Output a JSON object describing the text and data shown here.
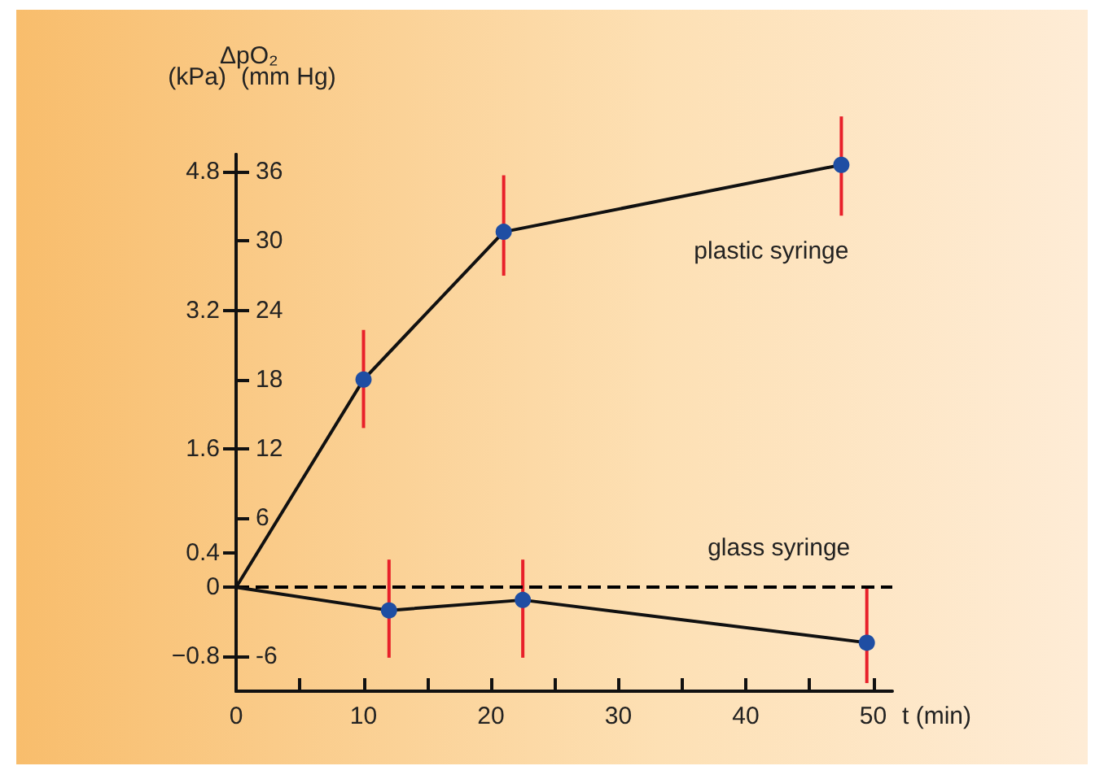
{
  "chart_data": {
    "type": "line",
    "ylabel": "(mm Hg)",
    "y2label": "(kPa)",
    "xlabel": "t (min)",
    "annotations": [
      "ΔpO₂"
    ],
    "series": [
      {
        "name": "plastic syringe",
        "color": "#1f4ea3",
        "x": [
          0,
          10,
          21,
          47.5
        ],
        "values": [
          0,
          18,
          30.8,
          36.6
        ],
        "errors": [
          null,
          [
            13.8,
            22.3
          ],
          [
            27,
            35.7
          ],
          [
            32.2,
            40.8
          ]
        ]
      },
      {
        "name": "glass syringe",
        "color": "#1f4ea3",
        "x": [
          0,
          12,
          22.5,
          49.5
        ],
        "values": [
          0,
          -2,
          -1.1,
          -4.8
        ],
        "errors": [
          null,
          [
            -6.1,
            2.4
          ],
          [
            -6.1,
            2.4
          ],
          [
            -8.3,
            0
          ]
        ]
      }
    ],
    "xlim": [
      0,
      51.5
    ],
    "xticks": [
      0,
      {
        "value": 5,
        "label": null
      },
      10,
      {
        "value": 15,
        "label": null
      },
      20,
      {
        "value": 25,
        "label": null
      },
      30,
      {
        "value": 35,
        "label": null
      },
      40,
      {
        "value": 45,
        "label": null
      },
      50
    ],
    "ylim": [
      -9,
      37.5
    ],
    "yticks": [
      -6,
      6,
      12,
      18,
      24,
      30,
      36
    ],
    "y2lim": [
      -1.2,
      5
    ],
    "y2ticks": [
      -0.8,
      0,
      0.4,
      1.6,
      3.2,
      4.8
    ],
    "ref_lines": [
      {
        "axis": "y",
        "value": 0,
        "line_style": "dashed",
        "color": "#000000"
      }
    ],
    "marker": "circle",
    "line_style": "solid",
    "grid": false
  }
}
